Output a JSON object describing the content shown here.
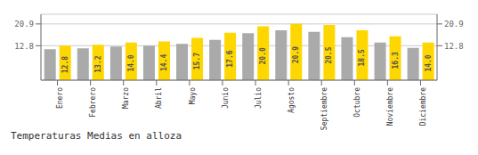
{
  "chart_data": {
    "type": "bar",
    "title": "Temperaturas Medias en alloza",
    "categories": [
      "Enero",
      "Febrero",
      "Marzo",
      "Abril",
      "Mayo",
      "Junio",
      "Julio",
      "Agosto",
      "Septiembre",
      "Octubre",
      "Noviembre",
      "Diciembre"
    ],
    "series": [
      {
        "color": "#AAAAAA",
        "values": [
          11.5,
          11.8,
          12.5,
          12.8,
          13.5,
          15.0,
          17.5,
          18.5,
          18.0,
          16.0,
          14.0,
          12.0
        ]
      },
      {
        "color": "#FFD700",
        "values": [
          12.8,
          13.2,
          14.0,
          14.4,
          15.7,
          17.6,
          20.0,
          20.9,
          20.5,
          18.5,
          16.3,
          14.0
        ],
        "value_labels": [
          "12.8",
          "13.2",
          "14.0",
          "14.4",
          "15.7",
          "17.6",
          "20.0",
          "20.9",
          "20.5",
          "18.5",
          "16.3",
          "14.0"
        ],
        "data_labels": true
      }
    ],
    "ylim": [
      0,
      24.5
    ],
    "yticks": [
      12.8,
      20.9
    ],
    "y2lim": [
      0,
      24.5
    ],
    "y2ticks": [
      12.8,
      20.9
    ],
    "grid": true
  }
}
